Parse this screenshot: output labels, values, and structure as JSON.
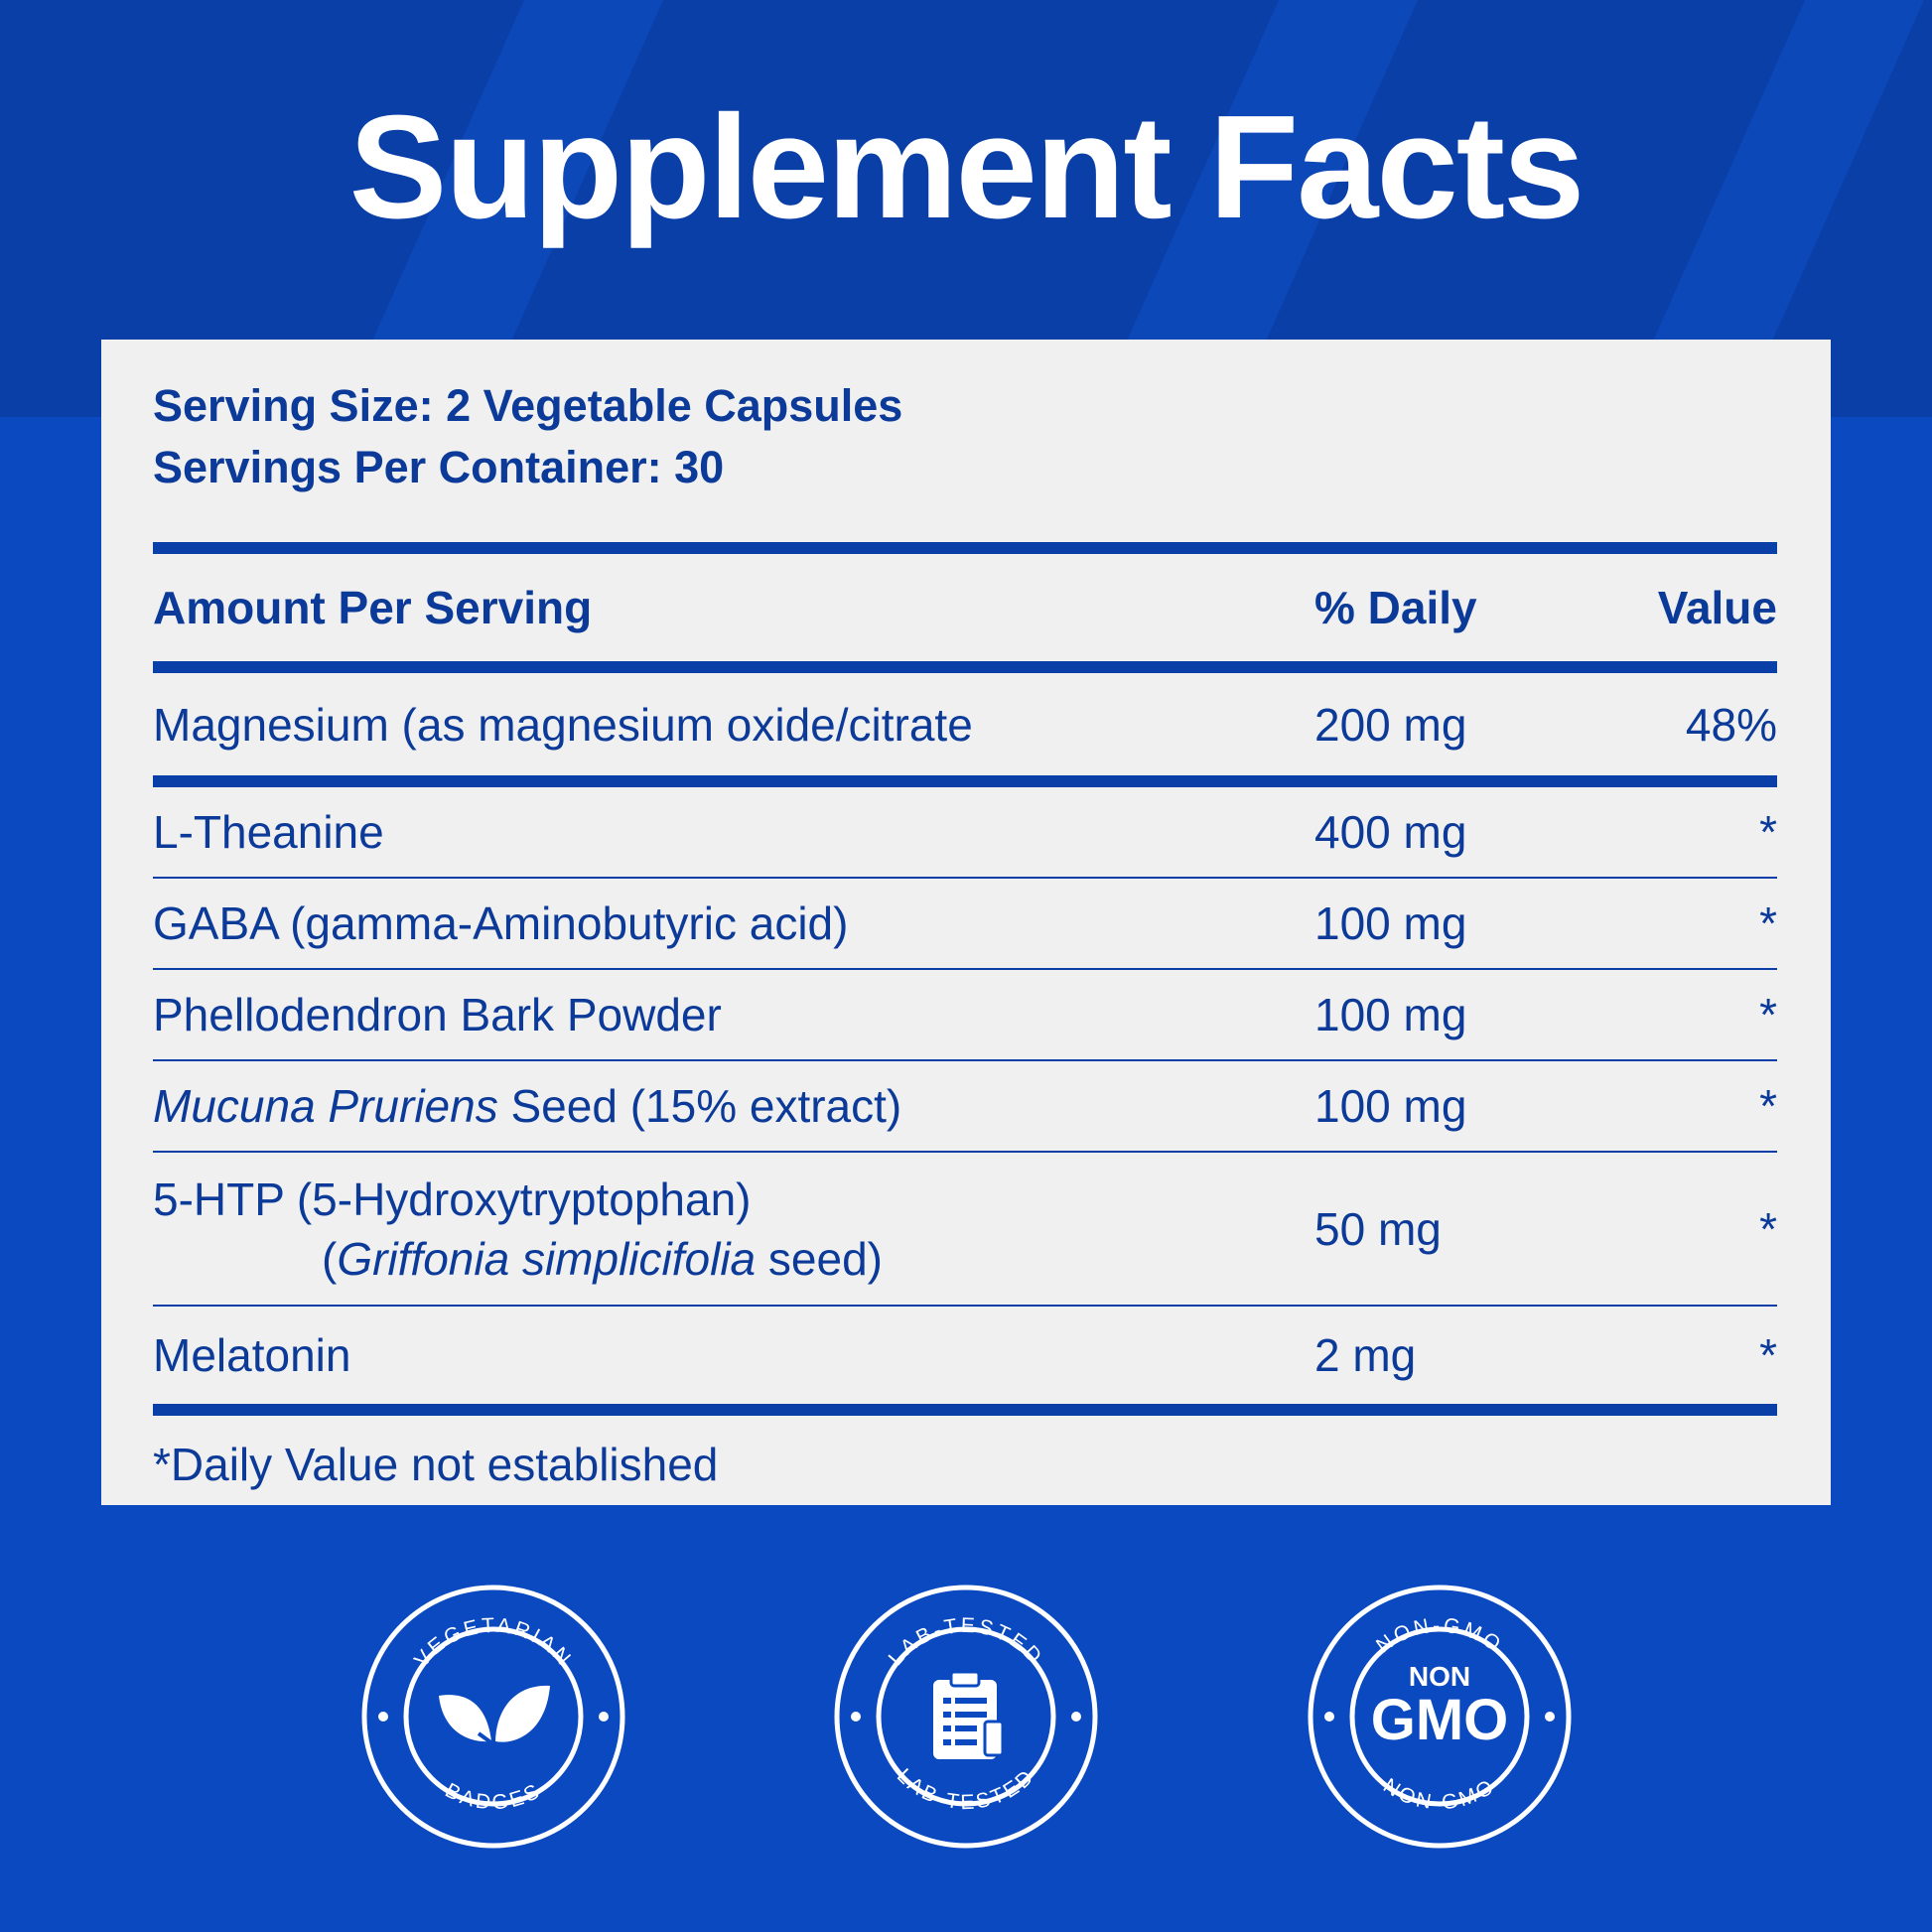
{
  "title": "Supplement Facts",
  "serving": {
    "size": "Serving Size: 2 Vegetable Capsules",
    "per_container": "Servings Per Container: 30"
  },
  "table": {
    "headers": [
      "Amount Per Serving",
      "% Daily",
      "Value"
    ],
    "rows": [
      {
        "name": "Magnesium (as magnesium oxide/citrate",
        "amount": "200 mg",
        "dv": "48%"
      },
      {
        "name": "L-Theanine",
        "amount": "400 mg",
        "dv": "*"
      },
      {
        "name": "GABA (gamma-Aminobutyric acid)",
        "amount": "100 mg",
        "dv": "*"
      },
      {
        "name": "Phellodendron Bark Powder",
        "amount": "100 mg",
        "dv": "*"
      },
      {
        "name_italic": "Mucuna Pruriens",
        "name_rest": " Seed (15% extract)",
        "amount": "100 mg",
        "dv": "*"
      },
      {
        "name": "5-HTP (5-Hydroxytryptophan)",
        "sub_open": "(",
        "sub_italic": "Griffonia simplicifolia",
        "sub_rest": " seed)",
        "amount": "50 mg",
        "dv": "*"
      },
      {
        "name": "Melatonin",
        "amount": "2 mg",
        "dv": "*"
      }
    ],
    "footnote": "*Daily Value not established"
  },
  "badges": [
    {
      "top_text": "VEGETARIAN",
      "bottom_text": "BADGES",
      "icon": "leaf-icon"
    },
    {
      "top_text": "LAB-TESTED",
      "bottom_text": "LAB-TESTED",
      "icon": "clipboard-icon"
    },
    {
      "top_text": "NON-GMO",
      "bottom_text": "NON-GMO",
      "center_small": "NON",
      "center_big": "GMO"
    }
  ],
  "colors": {
    "background": "#0a49c0",
    "header_bg": "#0a3fa8",
    "panel": "#f0f0f0",
    "text": "#0c3a99",
    "white": "#ffffff"
  }
}
